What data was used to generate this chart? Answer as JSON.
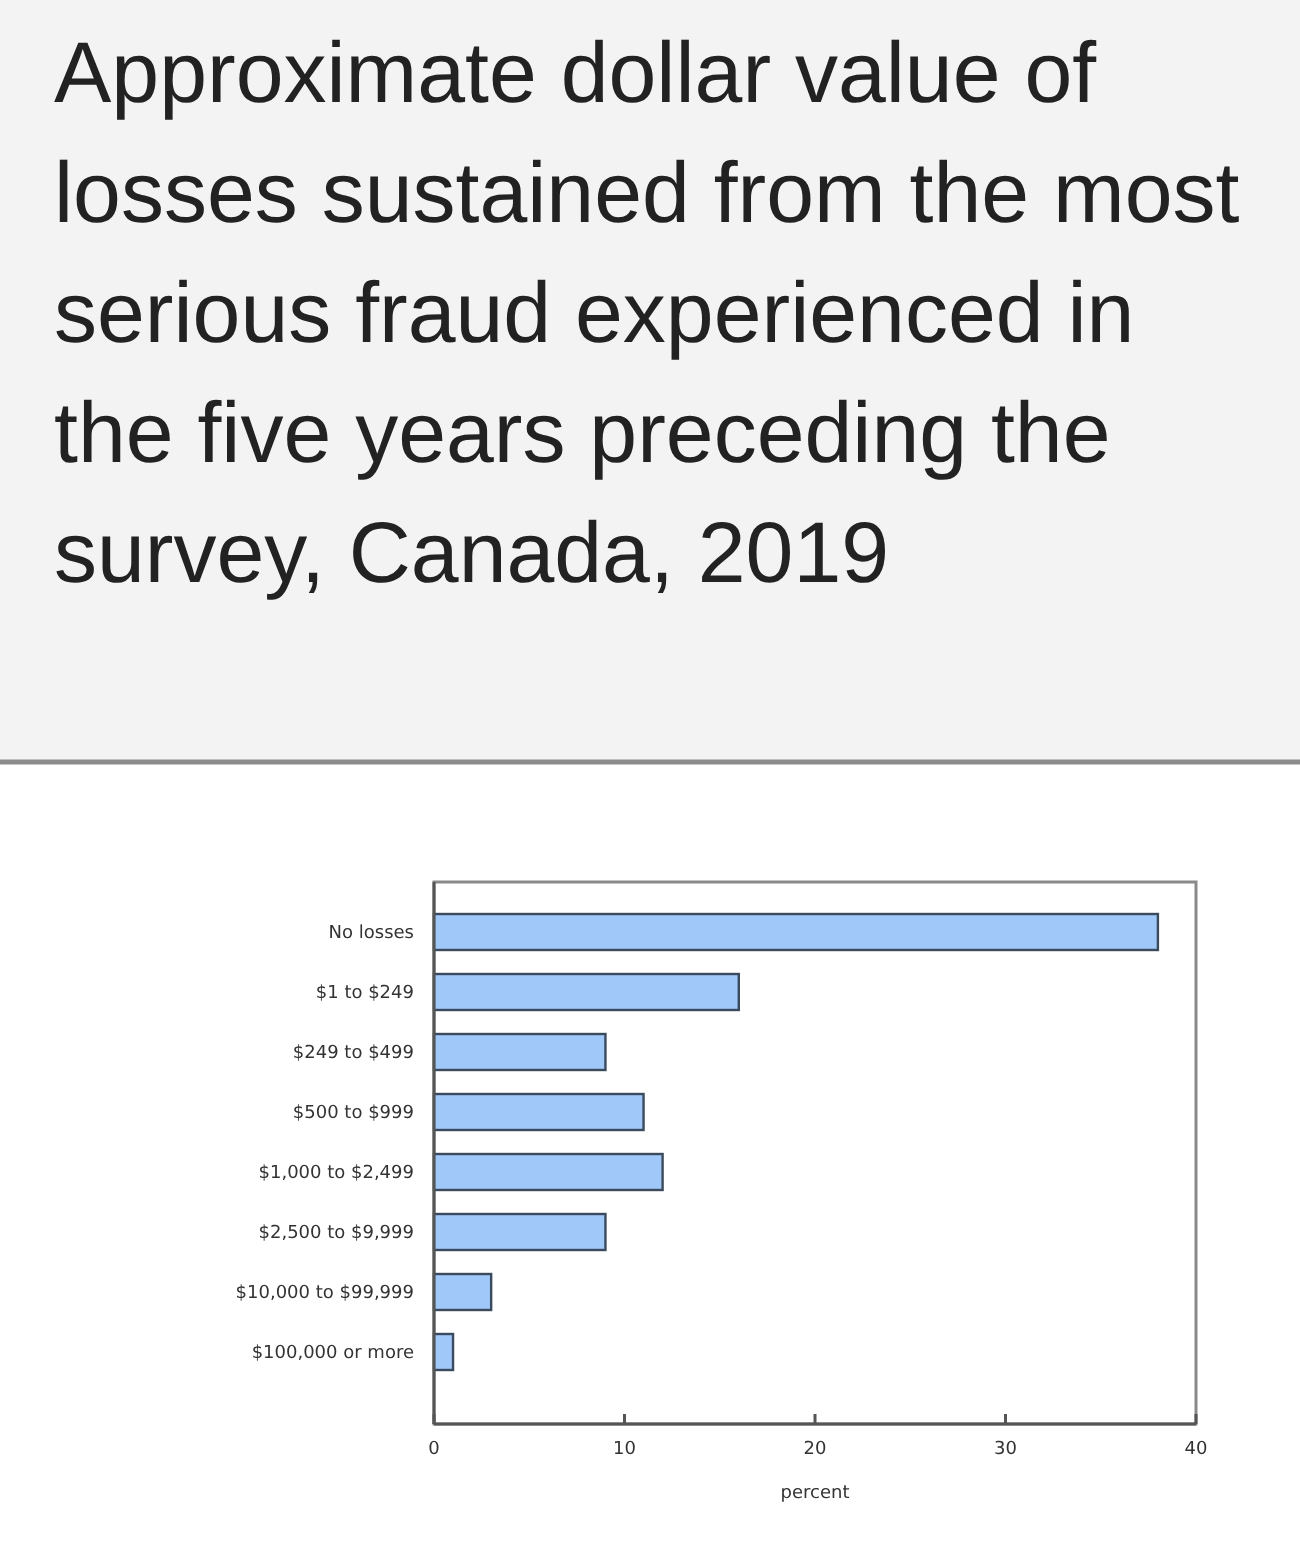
{
  "chart_data": {
    "type": "bar",
    "orientation": "horizontal",
    "title": "Approximate dollar value of losses sustained from the most serious fraud experienced in the five years preceding the survey, Canada, 2019",
    "xlabel": "percent",
    "categories": [
      "No losses",
      "$1 to $249",
      "$249 to $499",
      "$500 to $999",
      "$1,000 to $2,499",
      "$2,500 to $9,999",
      "$10,000 to $99,999",
      "$100,000 or more"
    ],
    "values": [
      38,
      16,
      9,
      11,
      12,
      9,
      3,
      1
    ],
    "color": "#a0c8f8",
    "xlim": [
      0,
      40
    ],
    "xticks": [
      0,
      10,
      20,
      30,
      40
    ]
  }
}
